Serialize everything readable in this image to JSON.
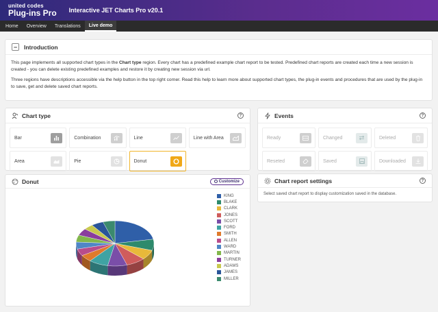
{
  "header": {
    "brand_top": "united codes",
    "brand_bottom": "Plug-ins Pro",
    "title": "Interactive JET Charts Pro v20.1"
  },
  "nav": {
    "items": [
      {
        "label": "Home"
      },
      {
        "label": "Overview"
      },
      {
        "label": "Translations"
      },
      {
        "label": "Live demo",
        "active": true
      }
    ]
  },
  "intro": {
    "title": "Introduction",
    "p1_before": "This page implements all supported chart types in the ",
    "p1_bold": "Chart type",
    "p1_after": " region. Every chart has a predefined example chart report to be tested. Predefined chart reports are created each time a new session is created - you can delete existing predefined examples and restore it by creating new session via url.",
    "p2": "Three regions have descriptions accessible via the help button in the top right corner. Read this help to learn more about supported chart types, the plug-in events and procedures that are used by the plug-in to save, get and delete saved chart reports."
  },
  "chart_type": {
    "title": "Chart type",
    "tiles": [
      {
        "label": "Bar",
        "icon": "bar-chart-icon"
      },
      {
        "label": "Combination",
        "icon": "combination-chart-icon"
      },
      {
        "label": "Line",
        "icon": "line-chart-icon"
      },
      {
        "label": "Line with Area",
        "icon": "line-area-chart-icon"
      },
      {
        "label": "Area",
        "icon": "area-chart-icon"
      },
      {
        "label": "Pie",
        "icon": "pie-chart-icon"
      },
      {
        "label": "Donut",
        "icon": "donut-chart-icon",
        "active": true
      }
    ]
  },
  "events": {
    "title": "Events",
    "tiles": [
      {
        "label": "Ready",
        "icon": "ready-icon"
      },
      {
        "label": "Changed",
        "icon": "changed-icon"
      },
      {
        "label": "Deleted",
        "icon": "trash-icon"
      },
      {
        "label": "Reseted",
        "icon": "eraser-icon"
      },
      {
        "label": "Saved",
        "icon": "save-icon"
      },
      {
        "label": "Downloaded",
        "icon": "download-icon"
      }
    ]
  },
  "donut": {
    "title": "Donut",
    "customize_label": "Customize"
  },
  "settings": {
    "title": "Chart report settings",
    "message": "Select saved chart report to display customization saved in the database."
  },
  "chart_data": {
    "type": "pie",
    "title": "",
    "series": [
      {
        "name": "KING",
        "value": 22,
        "color": "#2f5fa8"
      },
      {
        "name": "BLAKE",
        "value": 8,
        "color": "#2e8a6c"
      },
      {
        "name": "CLARK",
        "value": 7,
        "color": "#e8b93a"
      },
      {
        "name": "JONES",
        "value": 8,
        "color": "#cf5c5c"
      },
      {
        "name": "SCOTT",
        "value": 8,
        "color": "#7a4ea8"
      },
      {
        "name": "FORD",
        "value": 8,
        "color": "#3fa3a3"
      },
      {
        "name": "SMITH",
        "value": 5,
        "color": "#e07a2c"
      },
      {
        "name": "ALLEN",
        "value": 5,
        "color": "#b84c8c"
      },
      {
        "name": "WARD",
        "value": 5,
        "color": "#4f86c6"
      },
      {
        "name": "MARTIN",
        "value": 5,
        "color": "#82b74b"
      },
      {
        "name": "TURNER",
        "value": 5,
        "color": "#8a3d9e"
      },
      {
        "name": "ADAMS",
        "value": 4,
        "color": "#c9c94e"
      },
      {
        "name": "JAMES",
        "value": 5,
        "color": "#2a5599"
      },
      {
        "name": "MILLER",
        "value": 5,
        "color": "#3b8a6e"
      }
    ]
  }
}
